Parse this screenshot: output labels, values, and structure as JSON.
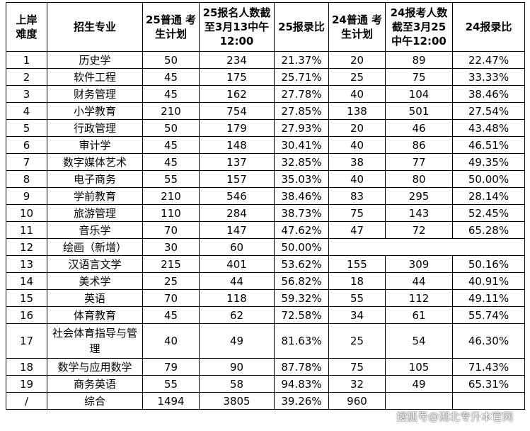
{
  "table": {
    "headers": [
      "上岸\n难度",
      "招生专业",
      "25普通 考\n生计划",
      "25报名人数截\n至3月13中午\n12:00",
      "25报录比",
      "24普通 考\n生计划",
      "24报考人数\n截至3月25\n中午12:00",
      "24报录比"
    ],
    "rows": [
      [
        "1",
        "历史学",
        "50",
        "234",
        "21.37%",
        "20",
        "89",
        "22.47%"
      ],
      [
        "2",
        "软件工程",
        "45",
        "175",
        "25.71%",
        "25",
        "75",
        "33.33%"
      ],
      [
        "3",
        "财务管理",
        "45",
        "162",
        "27.78%",
        "40",
        "104",
        "38.46%"
      ],
      [
        "4",
        "小学教育",
        "210",
        "754",
        "27.85%",
        "138",
        "501",
        "27.54%"
      ],
      [
        "5",
        "行政管理",
        "50",
        "179",
        "27.93%",
        "20",
        "46",
        "43.48%"
      ],
      [
        "6",
        "审计学",
        "45",
        "148",
        "30.41%",
        "40",
        "86",
        "46.51%"
      ],
      [
        "7",
        "数字媒体艺术",
        "45",
        "137",
        "32.85%",
        "38",
        "77",
        "49.35%"
      ],
      [
        "8",
        "电子商务",
        "55",
        "157",
        "35.03%",
        "40",
        "80",
        "50.00%"
      ],
      [
        "9",
        "学前教育",
        "210",
        "546",
        "38.46%",
        "83",
        "295",
        "28.14%"
      ],
      [
        "10",
        "旅游管理",
        "110",
        "284",
        "38.73%",
        "75",
        "143",
        "52.45%"
      ],
      [
        "11",
        "音乐学",
        "70",
        "147",
        "47.62%",
        "47",
        "72",
        "65.28%"
      ],
      [
        "12",
        "绘画（新增）",
        "30",
        "60",
        "50.00%",
        "",
        "",
        ""
      ],
      [
        "13",
        "汉语言文学",
        "215",
        "401",
        "53.62%",
        "155",
        "309",
        "50.16%"
      ],
      [
        "14",
        "美术学",
        "25",
        "44",
        "56.82%",
        "18",
        "44",
        "40.91%"
      ],
      [
        "15",
        "英语",
        "70",
        "118",
        "59.32%",
        "55",
        "112",
        "49.11%"
      ],
      [
        "16",
        "体育教育",
        "45",
        "62",
        "72.58%",
        "34",
        "61",
        "55.74%"
      ],
      [
        "17",
        "社会体育指导与管理",
        "40",
        "49",
        "81.63%",
        "25",
        "54",
        "46.30%"
      ],
      [
        "18",
        "数学与应用数学",
        "79",
        "90",
        "87.78%",
        "75",
        "105",
        "71.43%"
      ],
      [
        "19",
        "商务英语",
        "55",
        "58",
        "94.83%",
        "32",
        "49",
        "65.31%"
      ],
      [
        "/",
        "综合",
        "1494",
        "3805",
        "39.26%",
        "960",
        "",
        ""
      ]
    ]
  },
  "watermark": "搜狐号@湖北专升本官网"
}
